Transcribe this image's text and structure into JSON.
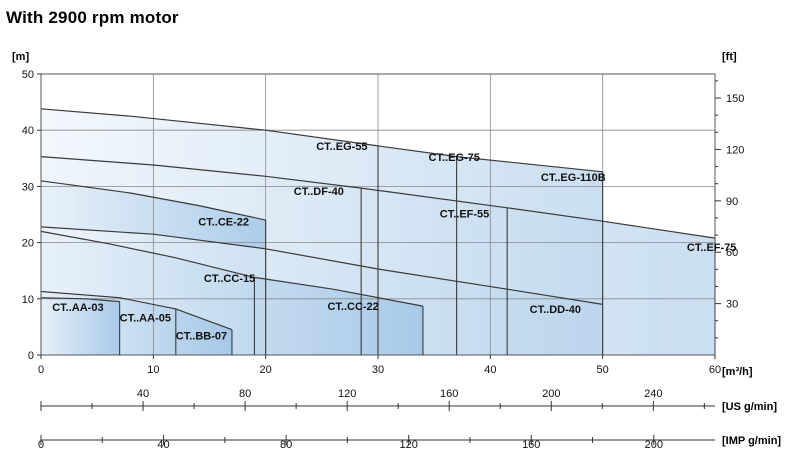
{
  "header": {
    "title": "With 2900 rpm motor"
  },
  "chart_data": {
    "type": "area",
    "title": "With 2900 rpm motor",
    "xlabel": "[m³/h]",
    "ylabel": "[m]",
    "y2label": "[ft]",
    "xlim": [
      0,
      60
    ],
    "ylim": [
      0,
      50
    ],
    "x_ticks": [
      0,
      10,
      20,
      30,
      40,
      50,
      60
    ],
    "y_ticks": [
      0,
      10,
      20,
      30,
      40,
      50
    ],
    "y2_ticks": [
      30,
      60,
      90,
      120,
      150
    ],
    "grid": true,
    "secondary_axes": [
      {
        "label": "[US g/min]",
        "factor": 4.4029,
        "ticks": [
          40,
          80,
          120,
          160,
          200,
          240
        ]
      },
      {
        "label": "[IMP g/min]",
        "factor": 3.6662,
        "ticks": [
          0,
          40,
          80,
          120,
          160,
          200
        ]
      }
    ],
    "series": [
      {
        "name": "CT..EG-55",
        "x_max": 30,
        "label_at": [
          24.5,
          36.5
        ]
      },
      {
        "name": "CT..EG-75",
        "x_max": 37,
        "label_at": [
          34.5,
          34.5
        ]
      },
      {
        "name": "CT..EG-110B",
        "x_max": 50,
        "label_at": [
          44.5,
          31.0
        ]
      },
      {
        "name": "CT..EF-75",
        "x_max": 60,
        "label_at": [
          57.5,
          18.5
        ]
      },
      {
        "name": "CT..EF-55",
        "x_max": 41.5,
        "label_at": [
          35.5,
          24.5
        ]
      },
      {
        "name": "CT..DF-40",
        "x_max": 28.5,
        "label_at": [
          22.5,
          28.5
        ]
      },
      {
        "name": "CT..CE-22",
        "x_max": 20,
        "label_at": [
          14.0,
          23.0
        ]
      },
      {
        "name": "CT..DD-40",
        "x_max": 50,
        "label_at": [
          43.5,
          7.5
        ]
      },
      {
        "name": "CT..CC-22",
        "x_max": 34,
        "label_at": [
          25.5,
          8.0
        ]
      },
      {
        "name": "CT..CC-15",
        "x_max": 19,
        "label_at": [
          14.5,
          13.0
        ]
      },
      {
        "name": "CT..AA-05",
        "x_max": 12,
        "label_at": [
          7.0,
          6.0
        ]
      },
      {
        "name": "CT..BB-07",
        "x_max": 17,
        "label_at": [
          12.0,
          2.8
        ]
      },
      {
        "name": "CT..AA-03",
        "x_max": 7,
        "label_at": [
          1.0,
          7.8
        ]
      }
    ],
    "curves": [
      {
        "id": "eg",
        "points": [
          [
            0,
            43.8
          ],
          [
            8,
            42.5
          ],
          [
            20,
            40
          ],
          [
            30,
            37.2
          ],
          [
            37,
            35.3
          ],
          [
            50,
            32.6
          ]
        ]
      },
      {
        "id": "ef",
        "points": [
          [
            0,
            35.3
          ],
          [
            10,
            33.8
          ],
          [
            20,
            31.8
          ],
          [
            28.5,
            29.7
          ],
          [
            41.5,
            26.2
          ],
          [
            50,
            23.8
          ],
          [
            60,
            20.8
          ]
        ]
      },
      {
        "id": "ce",
        "points": [
          [
            0,
            31
          ],
          [
            8,
            28.8
          ],
          [
            14,
            26.6
          ],
          [
            20,
            24
          ]
        ]
      },
      {
        "id": "dd",
        "points": [
          [
            0,
            22.8
          ],
          [
            10,
            21.5
          ],
          [
            20,
            18.9
          ],
          [
            30,
            15.3
          ],
          [
            41.5,
            11.7
          ],
          [
            50,
            9
          ]
        ]
      },
      {
        "id": "cc",
        "points": [
          [
            0,
            22
          ],
          [
            6,
            19.8
          ],
          [
            12,
            17.3
          ],
          [
            19,
            13.8
          ],
          [
            26,
            11.7
          ],
          [
            34,
            8.7
          ]
        ]
      },
      {
        "id": "aa",
        "points": [
          [
            0,
            11.3
          ],
          [
            7,
            10.2
          ],
          [
            12,
            8.2
          ],
          [
            17,
            4.5
          ]
        ]
      },
      {
        "id": "aa3",
        "points": [
          [
            0,
            10.2
          ],
          [
            4,
            10
          ],
          [
            7,
            9.5
          ]
        ]
      }
    ],
    "dividers": [
      {
        "x": 30,
        "y": 37.2
      },
      {
        "x": 37,
        "y": 35.3
      },
      {
        "x": 50,
        "y": 32.6
      },
      {
        "x": 28.5,
        "y": 29.7
      },
      {
        "x": 41.5,
        "y": 26.2
      },
      {
        "x": 20,
        "y": 24
      },
      {
        "x": 19,
        "y": 13.8
      },
      {
        "x": 34,
        "y": 8.7
      },
      {
        "x": 7,
        "y": 9.5
      },
      {
        "x": 12,
        "y": 8.2
      },
      {
        "x": 17,
        "y": 4.5
      },
      {
        "x": 60,
        "y": 20.8
      }
    ]
  }
}
